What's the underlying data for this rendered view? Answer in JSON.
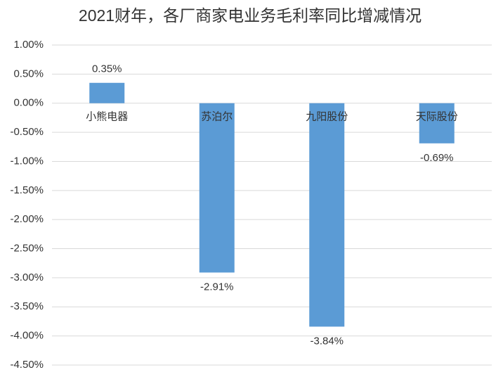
{
  "chart_data": {
    "type": "bar",
    "title": "2021财年，各厂商家电业务毛利率同比增减情况",
    "categories": [
      "小熊电器",
      "苏泊尔",
      "九阳股份",
      "天际股份"
    ],
    "values": [
      0.35,
      -2.91,
      -3.84,
      -0.69
    ],
    "value_labels": [
      "0.35%",
      "-2.91%",
      "-3.84%",
      "-0.69%"
    ],
    "color": "#5b9bd5",
    "ylim": [
      -4.5,
      1
    ],
    "yticks": [
      {
        "value": 1,
        "label": "1.00%"
      },
      {
        "value": 0.5,
        "label": "0.50%"
      },
      {
        "value": 0,
        "label": "0.00%"
      },
      {
        "value": -0.5,
        "label": "-0.50%"
      },
      {
        "value": -1,
        "label": "-1.00%"
      },
      {
        "value": -1.5,
        "label": "-1.50%"
      },
      {
        "value": -2,
        "label": "-2.00%"
      },
      {
        "value": -2.5,
        "label": "-2.50%"
      },
      {
        "value": -3,
        "label": "-3.00%"
      },
      {
        "value": -3.5,
        "label": "-3.50%"
      },
      {
        "value": -4,
        "label": "-4.00%"
      },
      {
        "value": -4.5,
        "label": "-4.50%"
      }
    ],
    "grid": true
  }
}
